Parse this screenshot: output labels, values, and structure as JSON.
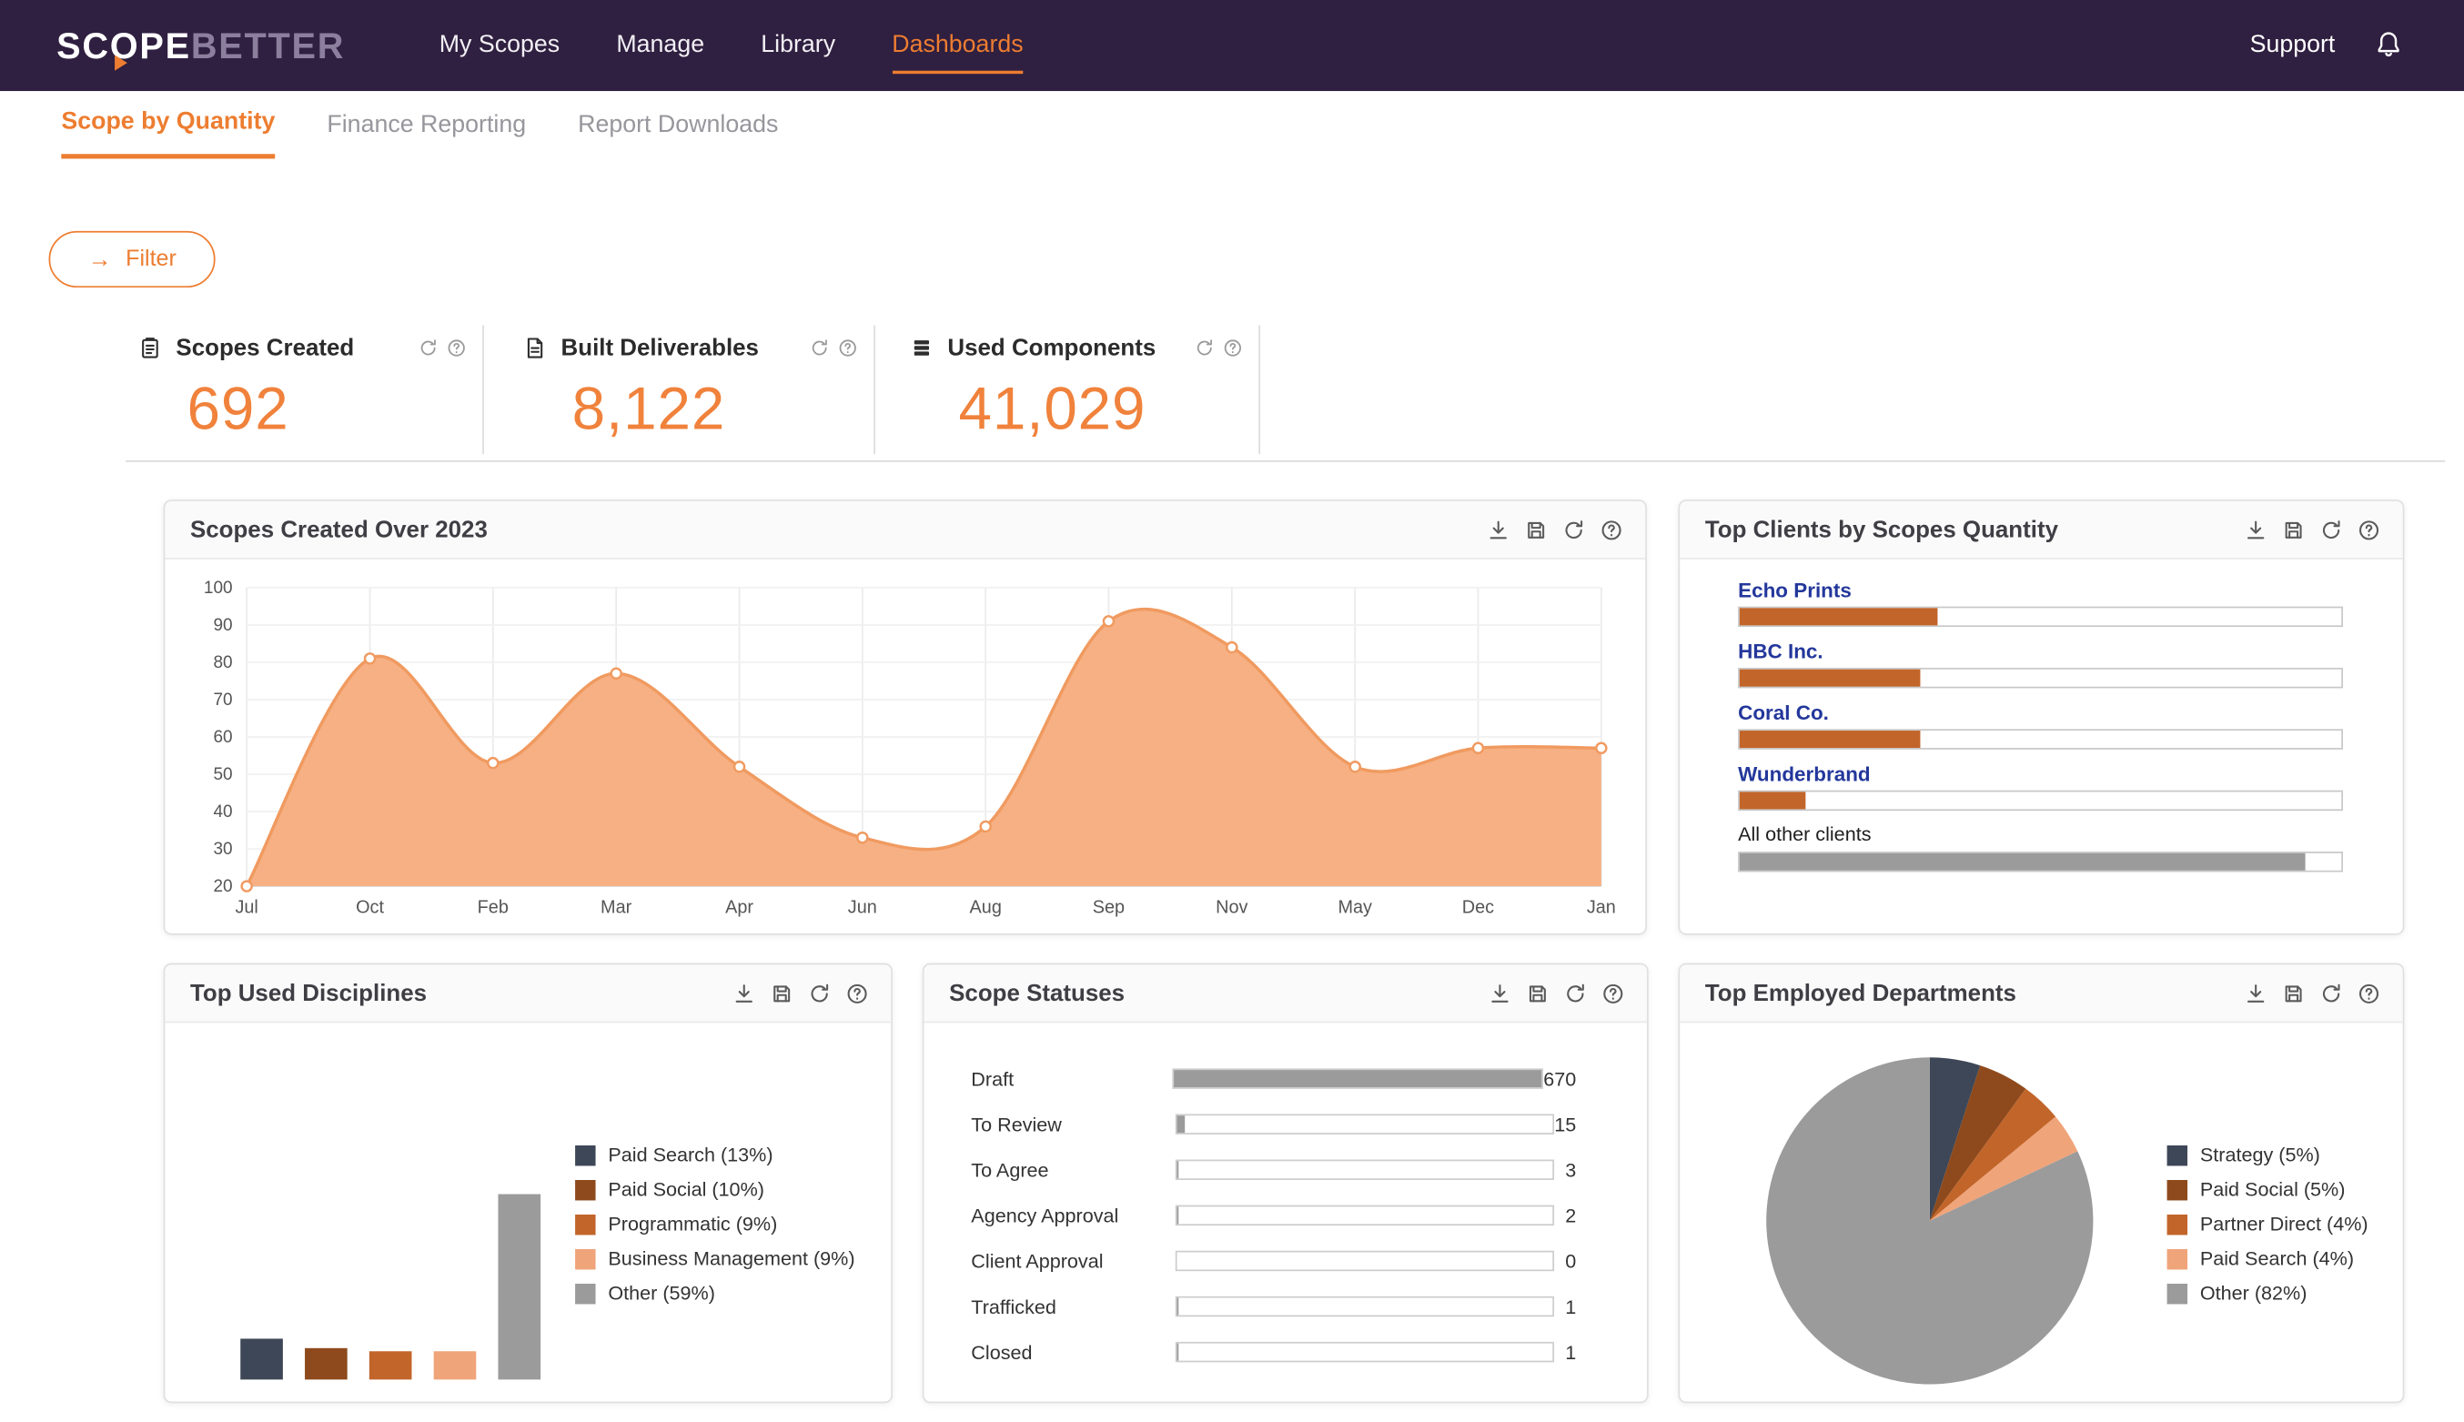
{
  "colors": {
    "navbar_bg": "#2F1F40",
    "accent": "#ED7D31",
    "kpi_value": "#F0823C",
    "bar_orange": "#C2652A",
    "bar_gray": "#9B9B9B",
    "area_fill": "#F6B083",
    "area_line": "#F09A60",
    "client_label_blue": "#23379B"
  },
  "navbar": {
    "logo_part1": "SC",
    "logo_o": "O",
    "logo_part2": "PE",
    "logo_secondary": "BETTER",
    "items": [
      {
        "label": "My Scopes",
        "active": false
      },
      {
        "label": "Manage",
        "active": false
      },
      {
        "label": "Library",
        "active": false
      },
      {
        "label": "Dashboards",
        "active": true
      }
    ],
    "support_label": "Support"
  },
  "tabs": [
    {
      "label": "Scope by Quantity",
      "active": true
    },
    {
      "label": "Finance Reporting",
      "active": false
    },
    {
      "label": "Report Downloads",
      "active": false
    }
  ],
  "filter_button": {
    "label": "Filter",
    "arrow_glyph": "→"
  },
  "kpis": [
    {
      "label": "Scopes Created",
      "value": "692",
      "icon": "clipboard-icon"
    },
    {
      "label": "Built Deliverables",
      "value": "8,122",
      "icon": "document-icon"
    },
    {
      "label": "Used Components",
      "value": "41,029",
      "icon": "layers-icon"
    }
  ],
  "kpi_mini_icons": [
    "refresh-icon",
    "help-icon"
  ],
  "card_action_icons": [
    "download-icon",
    "save-icon",
    "refresh-icon",
    "help-icon"
  ],
  "cards": {
    "scopes_over_year": {
      "title": "Scopes Created Over 2023"
    },
    "top_clients": {
      "title": "Top Clients by Scopes Quantity"
    },
    "disciplines": {
      "title": "Top Used Disciplines"
    },
    "statuses": {
      "title": "Scope Statuses"
    },
    "departments": {
      "title": "Top Employed Departments"
    }
  },
  "chart_data": [
    {
      "id": "scopes_created_over_2023",
      "type": "area",
      "title": "Scopes Created Over 2023",
      "x": [
        "Jul",
        "Oct",
        "Feb",
        "Mar",
        "Apr",
        "Jun",
        "Aug",
        "Sep",
        "Nov",
        "May",
        "Dec",
        "Jan"
      ],
      "values": [
        20,
        81,
        53,
        77,
        52,
        33,
        36,
        91,
        84,
        52,
        57,
        57
      ],
      "ylim": [
        20,
        100
      ],
      "yticks": [
        100,
        90,
        80,
        70,
        60,
        50,
        40,
        30,
        20
      ],
      "grid": true,
      "legend_position": "none",
      "fill_color": "#F6B083",
      "line_color": "#F09A60"
    },
    {
      "id": "top_clients",
      "type": "bar",
      "orientation": "horizontal",
      "title": "Top Clients by Scopes Quantity",
      "unit": "percent_of_track",
      "items": [
        {
          "label": "Echo Prints",
          "percent": 33,
          "bar_color": "#C2652A",
          "label_color": "#23379B",
          "bold": true
        },
        {
          "label": "HBC Inc.",
          "percent": 30,
          "bar_color": "#C2652A",
          "label_color": "#23379B",
          "bold": true
        },
        {
          "label": "Coral Co.",
          "percent": 30,
          "bar_color": "#C2652A",
          "label_color": "#23379B",
          "bold": true
        },
        {
          "label": "Wunderbrand",
          "percent": 11,
          "bar_color": "#C2652A",
          "label_color": "#23379B",
          "bold": true
        },
        {
          "label": "All other clients",
          "percent": 94,
          "bar_color": "#9B9B9B",
          "label_color": "#1F1F1F",
          "bold": false
        }
      ]
    },
    {
      "id": "top_used_disciplines",
      "type": "bar",
      "orientation": "vertical",
      "title": "Top Used Disciplines",
      "legend_position": "right",
      "items": [
        {
          "label": "Paid Search",
          "percent": 13,
          "color": "#3E4757"
        },
        {
          "label": "Paid Social",
          "percent": 10,
          "color": "#8E4A1C"
        },
        {
          "label": "Programmatic",
          "percent": 9,
          "color": "#C2652A"
        },
        {
          "label": "Business Management",
          "percent": 9,
          "color": "#F0A47A"
        },
        {
          "label": "Other",
          "percent": 59,
          "color": "#9B9B9B"
        }
      ]
    },
    {
      "id": "scope_statuses",
      "type": "bar",
      "orientation": "horizontal",
      "title": "Scope Statuses",
      "max": 670,
      "bar_color": "#9B9B9B",
      "items": [
        {
          "label": "Draft",
          "value": 670
        },
        {
          "label": "To Review",
          "value": 15
        },
        {
          "label": "To Agree",
          "value": 3
        },
        {
          "label": "Agency Approval",
          "value": 2
        },
        {
          "label": "Client Approval",
          "value": 0
        },
        {
          "label": "Trafficked",
          "value": 1
        },
        {
          "label": "Closed",
          "value": 1
        }
      ]
    },
    {
      "id": "top_employed_departments",
      "type": "pie",
      "title": "Top Employed Departments",
      "legend_position": "right",
      "items": [
        {
          "label": "Strategy",
          "percent": 5,
          "color": "#3E4757"
        },
        {
          "label": "Paid Social",
          "percent": 5,
          "color": "#8E4A1C"
        },
        {
          "label": "Partner Direct",
          "percent": 4,
          "color": "#C2652A"
        },
        {
          "label": "Paid Search",
          "percent": 4,
          "color": "#F0A47A"
        },
        {
          "label": "Other",
          "percent": 82,
          "color": "#9B9B9B"
        }
      ]
    }
  ]
}
